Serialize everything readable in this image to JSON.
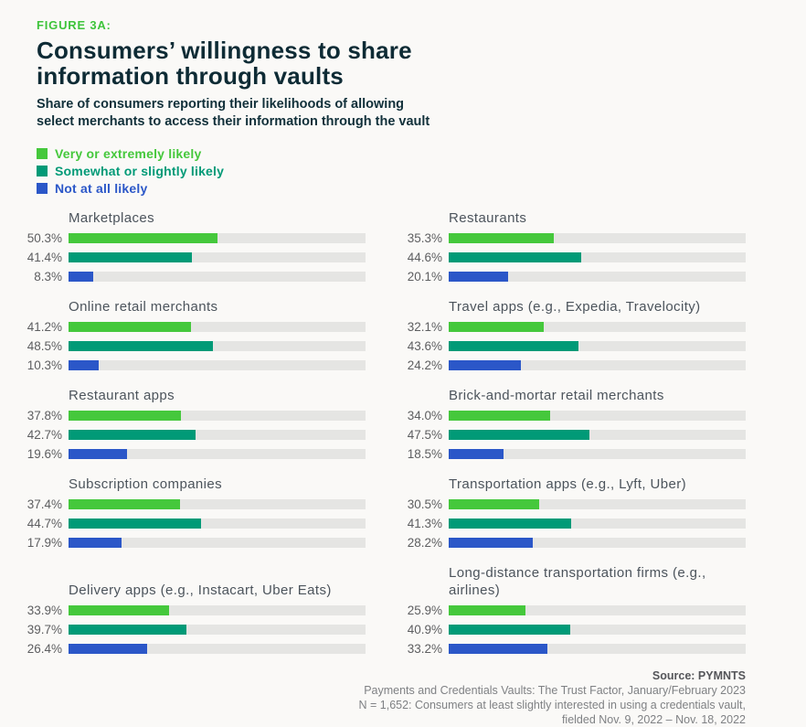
{
  "header": {
    "figure_label": "FIGURE 3A:",
    "title_line1": "Consumers’ willingness to share",
    "title_line2": "information through vaults",
    "subtitle_line1": "Share of consumers reporting their likelihoods of allowing",
    "subtitle_line2": "select merchants to access their information through the vault"
  },
  "legend": {
    "items": [
      {
        "label": "Very or extremely likely",
        "color": "#45c83c"
      },
      {
        "label": "Somewhat or slightly likely",
        "color": "#019a77"
      },
      {
        "label": "Not at all likely",
        "color": "#2b57c8"
      }
    ]
  },
  "chart": {
    "groups": [
      {
        "title": "Marketplaces",
        "bars": [
          {
            "label": "50.3%"
          },
          {
            "label": "41.4%"
          },
          {
            "label": "8.3%"
          }
        ]
      },
      {
        "title": "Restaurants",
        "bars": [
          {
            "label": "35.3%"
          },
          {
            "label": "44.6%"
          },
          {
            "label": "20.1%"
          }
        ]
      },
      {
        "title": "Online retail merchants",
        "bars": [
          {
            "label": "41.2%"
          },
          {
            "label": "48.5%"
          },
          {
            "label": "10.3%"
          }
        ]
      },
      {
        "title": "Travel apps (e.g., Expedia, Travelocity)",
        "bars": [
          {
            "label": "32.1%"
          },
          {
            "label": "43.6%"
          },
          {
            "label": "24.2%"
          }
        ]
      },
      {
        "title": "Restaurant apps",
        "bars": [
          {
            "label": "37.8%"
          },
          {
            "label": "42.7%"
          },
          {
            "label": "19.6%"
          }
        ]
      },
      {
        "title": "Brick-and-mortar retail merchants",
        "bars": [
          {
            "label": "34.0%"
          },
          {
            "label": "47.5%"
          },
          {
            "label": "18.5%"
          }
        ]
      },
      {
        "title": "Subscription companies",
        "bars": [
          {
            "label": "37.4%"
          },
          {
            "label": "44.7%"
          },
          {
            "label": "17.9%"
          }
        ]
      },
      {
        "title": "Transportation apps (e.g., Lyft, Uber)",
        "bars": [
          {
            "label": "30.5%"
          },
          {
            "label": "41.3%"
          },
          {
            "label": "28.2%"
          }
        ]
      },
      {
        "title": "Delivery apps (e.g., Instacart, Uber Eats)",
        "bars": [
          {
            "label": "33.9%"
          },
          {
            "label": "39.7%"
          },
          {
            "label": "26.4%"
          }
        ]
      },
      {
        "title": "Long-distance transportation firms (e.g., airlines)",
        "bars": [
          {
            "label": "25.9%"
          },
          {
            "label": "40.9%"
          },
          {
            "label": "33.2%"
          }
        ]
      }
    ]
  },
  "chart_data": {
    "type": "bar",
    "orientation": "horizontal",
    "value_unit": "percent",
    "xlim": [
      0,
      100
    ],
    "grid": false,
    "legend_position": "top-left",
    "title": "Consumers’ willingness to share information through vaults",
    "subtitle": "Share of consumers reporting their likelihoods of allowing select merchants to access their information through the vault",
    "categories": [
      "Marketplaces",
      "Restaurants",
      "Online retail merchants",
      "Travel apps (e.g., Expedia, Travelocity)",
      "Restaurant apps",
      "Brick-and-mortar retail merchants",
      "Subscription companies",
      "Transportation apps (e.g., Lyft, Uber)",
      "Delivery apps (e.g., Instacart, Uber Eats)",
      "Long-distance transportation firms (e.g., airlines)"
    ],
    "series": [
      {
        "name": "Very or extremely likely",
        "color": "#45c83c",
        "values": [
          50.3,
          35.3,
          41.2,
          32.1,
          37.8,
          34.0,
          37.4,
          30.5,
          33.9,
          25.9
        ]
      },
      {
        "name": "Somewhat or slightly likely",
        "color": "#019a77",
        "values": [
          41.4,
          44.6,
          48.5,
          43.6,
          42.7,
          47.5,
          44.7,
          41.3,
          39.7,
          40.9
        ]
      },
      {
        "name": "Not at all likely",
        "color": "#2b57c8",
        "values": [
          8.3,
          20.1,
          10.3,
          24.2,
          19.6,
          18.5,
          17.9,
          28.2,
          26.4,
          33.2
        ]
      }
    ]
  },
  "footer": {
    "source": "Source: PYMNTS",
    "line2": "Payments and Credentials Vaults: The Trust Factor, January/February 2023",
    "line3": "N = 1,652: Consumers at least slightly interested in using a credentials vault,",
    "line4": "fielded Nov. 9, 2022 – Nov. 18, 2022"
  }
}
